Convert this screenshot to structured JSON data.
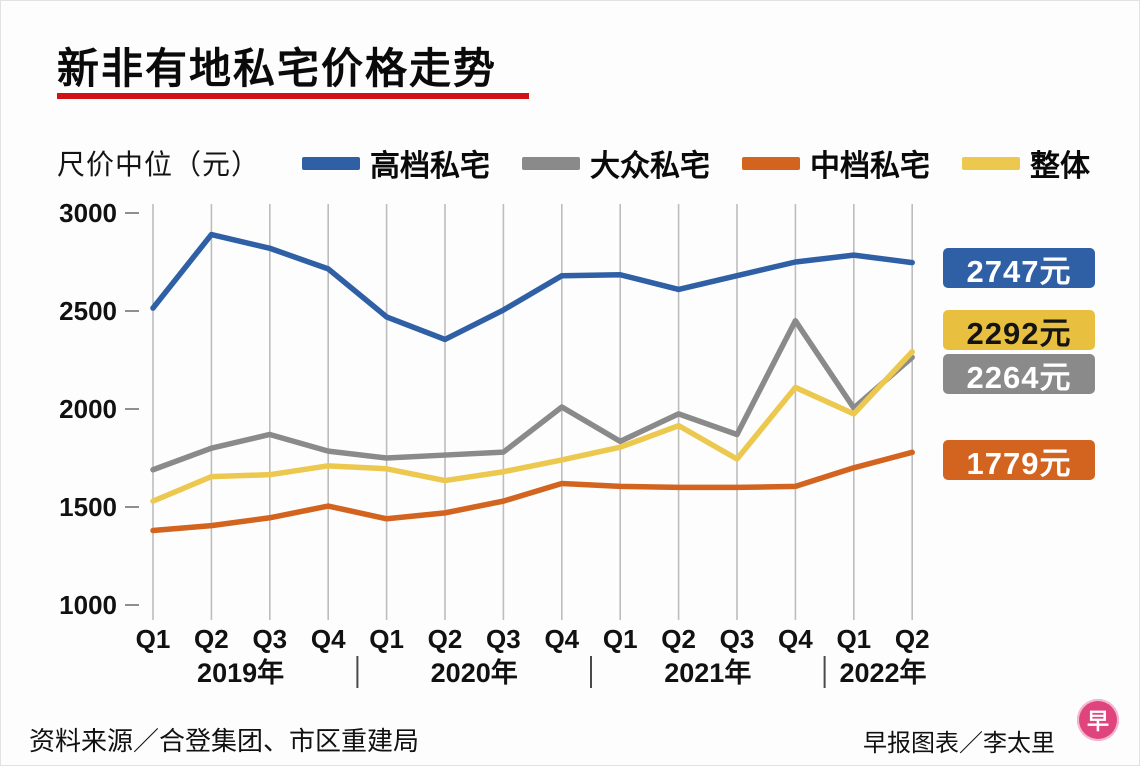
{
  "title": "新非有地私宅价格走势",
  "title_underline_color": "#d01116",
  "axis_unit_label": "尺价中位（元）",
  "legend": [
    {
      "label": "高档私宅",
      "color": "#2f5fa5"
    },
    {
      "label": "大众私宅",
      "color": "#8a8a8a"
    },
    {
      "label": "中档私宅",
      "color": "#d2641f"
    },
    {
      "label": "整体",
      "color": "#ecc84f"
    }
  ],
  "end_labels": [
    {
      "text": "2747元",
      "bg": "#2f5fa5",
      "fg": "#ffffff"
    },
    {
      "text": "2292元",
      "bg": "#e8bf3f",
      "fg": "#141414"
    },
    {
      "text": "2264元",
      "bg": "#8a8a8a",
      "fg": "#ffffff"
    },
    {
      "text": "1779元",
      "bg": "#d2641f",
      "fg": "#ffffff"
    }
  ],
  "footer": {
    "source": "资料来源／合登集团、市区重建局",
    "credit": "早报图表／李太里",
    "logo_text": "早"
  },
  "chart_data": {
    "type": "line",
    "title": "新非有地私宅价格走势",
    "ylabel": "尺价中位（元）",
    "ylim": [
      1000,
      3000
    ],
    "y_ticks": [
      3000,
      2500,
      2000,
      1500,
      1000
    ],
    "grid": "vertical-only",
    "legend_position": "top",
    "categories": [
      "Q1",
      "Q2",
      "Q3",
      "Q4",
      "Q1",
      "Q2",
      "Q3",
      "Q4",
      "Q1",
      "Q2",
      "Q3",
      "Q4",
      "Q1",
      "Q2"
    ],
    "year_groups": [
      {
        "label": "2019年",
        "span": 4
      },
      {
        "label": "2020年",
        "span": 4
      },
      {
        "label": "2021年",
        "span": 4
      },
      {
        "label": "2022年",
        "span": 2
      }
    ],
    "series": [
      {
        "name": "高档私宅",
        "color": "#2f5fa5",
        "end_value": 2747,
        "values": [
          2515,
          2890,
          2820,
          2715,
          2470,
          2355,
          2505,
          2680,
          2685,
          2610,
          2680,
          2750,
          2785,
          2747
        ]
      },
      {
        "name": "大众私宅",
        "color": "#8a8a8a",
        "end_value": 2264,
        "values": [
          1690,
          1800,
          1870,
          1785,
          1750,
          1765,
          1780,
          2010,
          1835,
          1975,
          1870,
          2450,
          2005,
          2264
        ]
      },
      {
        "name": "中档私宅",
        "color": "#d2641f",
        "end_value": 1779,
        "values": [
          1380,
          1405,
          1445,
          1505,
          1440,
          1470,
          1530,
          1620,
          1605,
          1600,
          1600,
          1605,
          1700,
          1779
        ]
      },
      {
        "name": "整体",
        "color": "#ecc84f",
        "end_value": 2292,
        "values": [
          1530,
          1655,
          1665,
          1710,
          1695,
          1635,
          1680,
          1740,
          1805,
          1915,
          1745,
          2110,
          1975,
          2292
        ]
      }
    ],
    "draw_order": [
      "大众私宅",
      "中档私宅",
      "整体",
      "高档私宅"
    ]
  }
}
